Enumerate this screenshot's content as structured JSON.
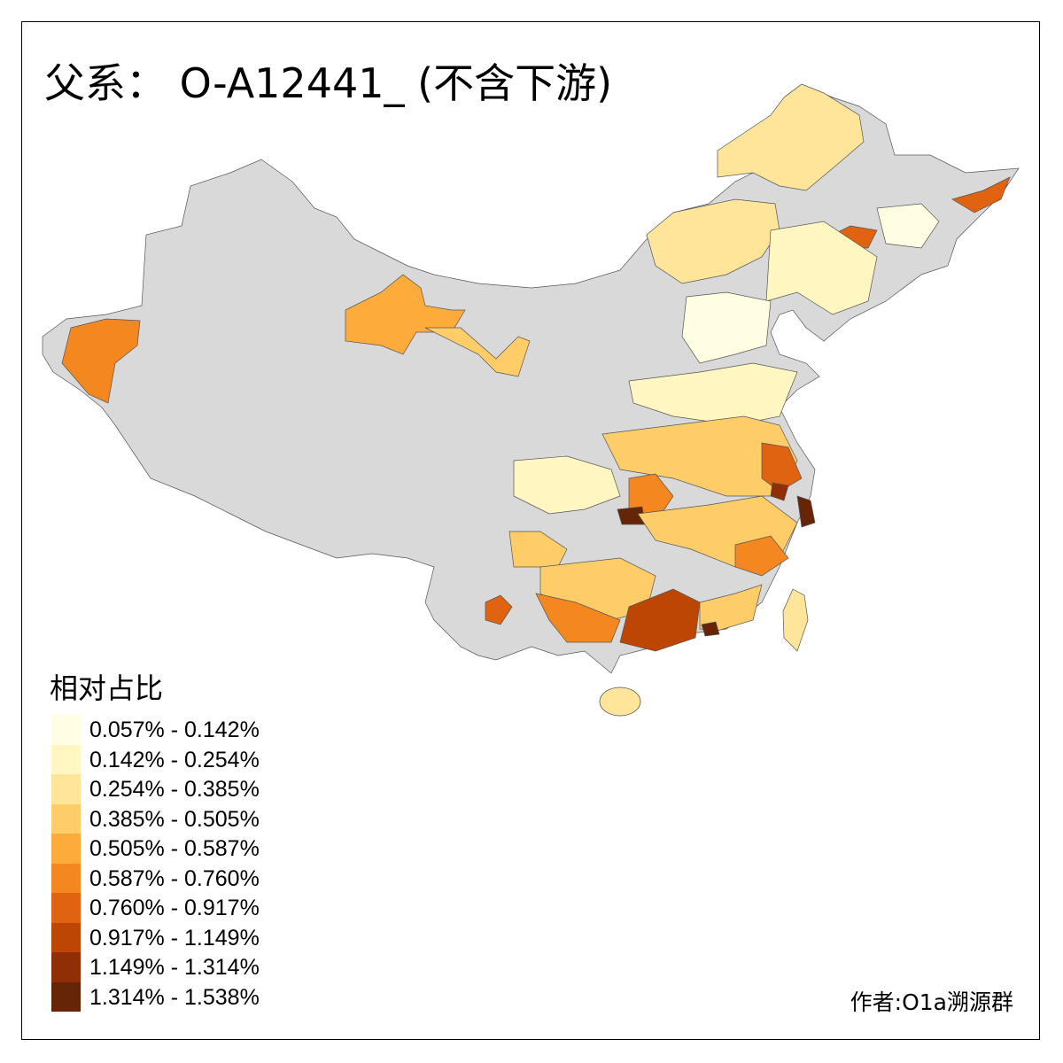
{
  "title": "父系： O-A12441_ (不含下游)",
  "legend": {
    "title": "相对占比",
    "items": [
      {
        "label": "0.057% - 0.142%",
        "color": "#FFFEE3"
      },
      {
        "label": "0.142% - 0.254%",
        "color": "#FFF6C1"
      },
      {
        "label": "0.254% - 0.385%",
        "color": "#FEE59A"
      },
      {
        "label": "0.385% - 0.505%",
        "color": "#FECD68"
      },
      {
        "label": "0.505% - 0.587%",
        "color": "#FDAC3C"
      },
      {
        "label": "0.587% - 0.760%",
        "color": "#F4871F"
      },
      {
        "label": "0.760% - 0.917%",
        "color": "#DF6310"
      },
      {
        "label": "0.917% - 1.149%",
        "color": "#BE4604"
      },
      {
        "label": "1.149% - 1.314%",
        "color": "#902F05"
      },
      {
        "label": "1.314% - 1.538%",
        "color": "#662507"
      }
    ]
  },
  "no_data_color": "#D9D9D9",
  "author": "作者:O1a溯源群"
}
